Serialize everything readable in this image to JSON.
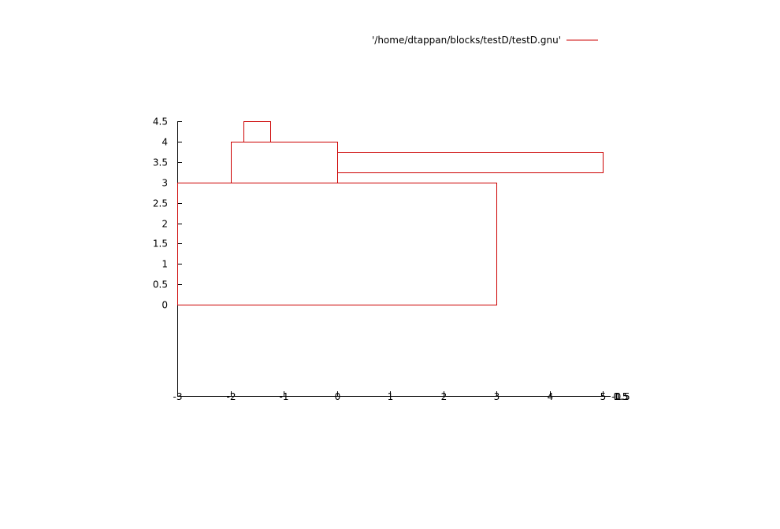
{
  "chart_data": {
    "type": "line",
    "title": "",
    "xlabel": "",
    "ylabel": "",
    "legend": {
      "label": "'/home/dtappan/blocks/testD/testD.gnu'",
      "position": "top-right"
    },
    "colors": {
      "series": "#cc0000",
      "axes": "#000000"
    },
    "grid": false,
    "xlim": [
      -3,
      5
    ],
    "x_ticks": [
      "-3",
      "-2",
      "-1",
      "0",
      "1",
      "2",
      "3",
      "4",
      "5"
    ],
    "x_tick_values": [
      -3,
      -2,
      -1,
      0,
      1,
      2,
      3,
      4,
      5
    ],
    "y_ticks": [
      "4.5",
      "4",
      "3.5",
      "3",
      "2.5",
      "2",
      "1.5",
      "1",
      "0.5",
      "0"
    ],
    "y_tick_values": [
      4.5,
      4,
      3.5,
      3,
      2.5,
      2,
      1.5,
      1,
      0.5,
      0
    ],
    "extra_x_tick_labels": [
      "-1.5",
      "-0.5",
      "0.5",
      "1.5"
    ],
    "series": [
      {
        "name": "'/home/dtappan/blocks/testD/testD.gnu'",
        "rectangles": [
          {
            "x0": -3,
            "x1": 3,
            "y0": 0,
            "y1": 3
          },
          {
            "x0": -2,
            "x1": 0,
            "y0": 3,
            "y1": 4
          },
          {
            "x0": -1.75,
            "x1": -1.25,
            "y0": 4,
            "y1": 4.5
          },
          {
            "x0": 0,
            "x1": 5,
            "y0": 3.25,
            "y1": 3.75
          }
        ]
      }
    ]
  }
}
